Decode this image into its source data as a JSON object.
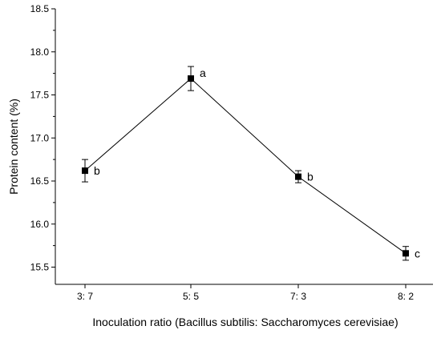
{
  "chart_data": {
    "type": "line",
    "categories": [
      "3: 7",
      "5: 5",
      "7: 3",
      "8: 2"
    ],
    "series": [
      {
        "values": [
          16.62,
          17.69,
          16.55,
          15.66
        ],
        "errors": [
          0.13,
          0.14,
          0.07,
          0.08
        ],
        "labels": [
          "b",
          "a",
          "b",
          "c"
        ]
      }
    ],
    "xlabel": "Inoculation ratio (Bacillus subtilis: Saccharomyces cerevisiae)",
    "ylabel": "Protein content (%)",
    "ylim": [
      15.3,
      18.5
    ],
    "yticks": [
      15.5,
      16.0,
      16.5,
      17.0,
      17.5,
      18.0,
      18.5
    ],
    "ytick_labels": [
      "15.5",
      "16.0",
      "16.5",
      "17.0",
      "17.5",
      "18.0",
      "18.5"
    ],
    "grid": false,
    "colors": {
      "line": "#000000",
      "marker": "#000000"
    }
  }
}
